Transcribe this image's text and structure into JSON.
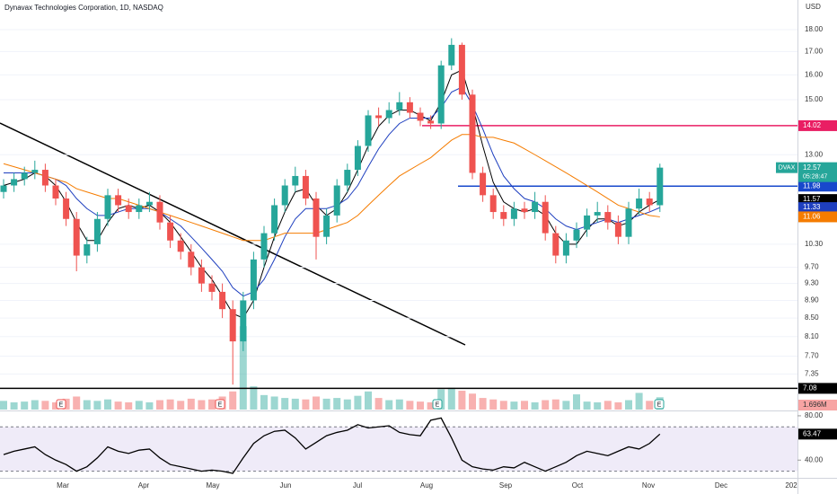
{
  "chart_data": {
    "type": "candlestick",
    "title": "Dynavax Technologies Corporation, 1D, NASDAQ",
    "currency": "USD",
    "symbol": "DVAX",
    "countdown": "05:28:47",
    "up_color": "#26a69a",
    "down_color": "#ef5350",
    "log_scale": true,
    "grid": true,
    "ylim": [
      6.7,
      19.44
    ],
    "yticks": [
      7.35,
      {
        "value": 7.7,
        "label": "7.70"
      },
      {
        "value": 8.1,
        "label": "8.10"
      },
      {
        "value": 8.5,
        "label": "8.50"
      },
      {
        "value": 8.9,
        "label": "8.90"
      },
      {
        "value": 9.3,
        "label": "9.30"
      },
      {
        "value": 9.7,
        "label": "9.70"
      },
      {
        "value": 10.3,
        "label": "10.30"
      },
      {
        "value": 13,
        "label": "13.00"
      },
      {
        "value": 15,
        "label": "15.00"
      },
      {
        "value": 16,
        "label": "16.00"
      },
      {
        "value": 17,
        "label": "17.00"
      },
      {
        "value": 18,
        "label": "18.00"
      }
    ],
    "open": [
      11.8,
      12.0,
      12.2,
      12.4,
      12.5,
      12.0,
      11.6,
      11.0,
      10.0,
      10.3,
      11.0,
      11.7,
      11.4,
      11.2,
      11.4,
      11.5,
      10.9,
      10.4,
      10.1,
      9.7,
      9.3,
      9.1,
      8.7,
      8.0,
      8.9,
      9.9,
      10.6,
      11.4,
      12.0,
      12.3,
      11.6,
      10.5,
      11.1,
      12.0,
      12.5,
      13.3,
      14.4,
      14.3,
      14.6,
      14.9,
      14.5,
      14.2,
      14.1,
      16.4,
      17.3,
      15.2,
      12.4,
      11.7,
      11.2,
      11.0,
      11.3,
      11.2,
      11.5,
      10.6,
      10.0,
      10.4,
      10.7,
      11.1,
      11.2,
      10.9,
      10.5,
      11.3,
      11.6,
      11.4
    ],
    "high": [
      12.2,
      12.4,
      12.6,
      12.8,
      12.7,
      12.2,
      11.8,
      11.2,
      10.5,
      11.2,
      11.9,
      11.9,
      11.6,
      11.6,
      11.8,
      11.7,
      11.1,
      10.6,
      10.3,
      9.9,
      9.5,
      9.3,
      8.9,
      9.1,
      10.1,
      10.8,
      11.6,
      12.2,
      12.6,
      12.5,
      11.8,
      11.3,
      12.2,
      12.7,
      13.5,
      14.6,
      14.7,
      14.9,
      15.3,
      15.1,
      14.7,
      14.4,
      16.6,
      17.6,
      17.4,
      15.4,
      12.6,
      11.9,
      11.4,
      11.5,
      11.5,
      11.8,
      11.7,
      10.8,
      10.6,
      10.9,
      11.3,
      11.5,
      11.4,
      11.1,
      11.5,
      11.9,
      11.8,
      12.7
    ],
    "low": [
      11.6,
      11.8,
      12.0,
      12.2,
      11.8,
      11.4,
      10.8,
      9.6,
      9.8,
      10.1,
      10.8,
      11.2,
      11.0,
      11.0,
      11.2,
      10.7,
      10.2,
      9.9,
      9.5,
      9.1,
      8.9,
      8.5,
      7.15,
      7.8,
      8.7,
      9.7,
      10.4,
      11.2,
      11.8,
      11.4,
      9.9,
      10.3,
      10.9,
      11.8,
      12.3,
      13.1,
      14.0,
      14.1,
      14.4,
      14.3,
      14.0,
      13.9,
      13.9,
      16.2,
      15.0,
      12.2,
      11.5,
      11.0,
      10.8,
      10.8,
      11.0,
      11.0,
      10.4,
      9.8,
      9.8,
      10.2,
      10.5,
      10.9,
      10.7,
      10.3,
      10.3,
      11.1,
      11.2,
      11.2
    ],
    "close": [
      12.0,
      12.2,
      12.4,
      12.5,
      12.0,
      11.6,
      11.0,
      10.0,
      10.3,
      11.0,
      11.7,
      11.4,
      11.2,
      11.4,
      11.5,
      10.9,
      10.4,
      10.1,
      9.7,
      9.3,
      9.1,
      8.7,
      8.0,
      8.9,
      9.9,
      10.6,
      11.4,
      12.0,
      12.3,
      11.6,
      10.5,
      11.1,
      12.0,
      12.5,
      13.3,
      14.4,
      14.3,
      14.6,
      14.9,
      14.5,
      14.2,
      14.1,
      16.4,
      17.3,
      15.2,
      12.4,
      11.7,
      11.2,
      11.0,
      11.3,
      11.2,
      11.5,
      10.6,
      10.0,
      10.4,
      10.7,
      11.1,
      11.2,
      10.9,
      10.5,
      11.3,
      11.6,
      11.4,
      12.57
    ],
    "series": [
      {
        "color": "#000000",
        "values": [
          12.0,
          12.1,
          12.2,
          12.4,
          12.3,
          12.0,
          11.5,
          10.9,
          10.4,
          10.4,
          10.9,
          11.3,
          11.4,
          11.3,
          11.4,
          11.2,
          10.9,
          10.5,
          10.1,
          9.7,
          9.4,
          9.0,
          8.6,
          8.5,
          8.9,
          9.7,
          10.5,
          11.2,
          11.8,
          11.9,
          11.4,
          11.1,
          11.3,
          11.8,
          12.5,
          13.3,
          14.0,
          14.4,
          14.6,
          14.6,
          14.4,
          14.2,
          14.9,
          16.0,
          16.2,
          14.8,
          13.3,
          12.1,
          11.5,
          11.3,
          11.2,
          11.3,
          11.1,
          10.6,
          10.3,
          10.3,
          10.7,
          11.0,
          11.0,
          10.8,
          10.9,
          11.2,
          11.4,
          11.57
        ]
      },
      {
        "color": "#1e3fbf",
        "values": [
          12.4,
          12.4,
          12.4,
          12.4,
          12.3,
          12.2,
          12.0,
          11.6,
          11.3,
          11.1,
          11.1,
          11.2,
          11.3,
          11.3,
          11.3,
          11.2,
          11.0,
          10.8,
          10.5,
          10.2,
          9.9,
          9.6,
          9.2,
          9.0,
          9.1,
          9.4,
          9.9,
          10.5,
          11.0,
          11.3,
          11.3,
          11.3,
          11.4,
          11.6,
          12.0,
          12.6,
          13.2,
          13.7,
          14.1,
          14.3,
          14.3,
          14.3,
          14.7,
          15.3,
          15.5,
          14.8,
          13.9,
          13.0,
          12.3,
          11.9,
          11.6,
          11.5,
          11.3,
          11.0,
          10.8,
          10.7,
          10.8,
          10.9,
          11.0,
          10.9,
          11.0,
          11.1,
          11.2,
          11.33
        ]
      },
      {
        "color": "#f57c00",
        "values": [
          12.7,
          12.6,
          12.5,
          12.4,
          12.3,
          12.2,
          12.1,
          11.9,
          11.8,
          11.7,
          11.6,
          11.6,
          11.5,
          11.4,
          11.3,
          11.2,
          11.1,
          11.0,
          10.9,
          10.8,
          10.7,
          10.6,
          10.5,
          10.4,
          10.4,
          10.4,
          10.5,
          10.6,
          10.6,
          10.6,
          10.6,
          10.7,
          10.8,
          10.9,
          11.1,
          11.4,
          11.7,
          12.0,
          12.3,
          12.5,
          12.7,
          12.9,
          13.2,
          13.5,
          13.7,
          13.7,
          13.6,
          13.6,
          13.5,
          13.4,
          13.2,
          13.0,
          12.8,
          12.6,
          12.4,
          12.2,
          12.0,
          11.8,
          11.6,
          11.4,
          11.3,
          11.2,
          11.1,
          11.06
        ]
      }
    ],
    "price_lines": [
      {
        "value": 14.02,
        "color": "#e91e63"
      },
      {
        "value": 11.98,
        "color": "#1848cc"
      },
      {
        "value": 7.08,
        "color": "#000000"
      }
    ],
    "volume": {
      "ylim": [
        0,
        14
      ],
      "label": "1.696M",
      "values": [
        1.2,
        1.0,
        1.1,
        1.3,
        1.2,
        1.0,
        1.5,
        1.8,
        1.3,
        1.2,
        1.4,
        1.1,
        1.0,
        1.2,
        1.0,
        1.3,
        1.4,
        1.2,
        1.5,
        1.3,
        1.4,
        1.8,
        2.5,
        11.5,
        3.2,
        2.0,
        1.8,
        1.6,
        1.5,
        1.4,
        1.8,
        1.5,
        1.6,
        1.4,
        1.9,
        2.5,
        1.6,
        1.3,
        1.4,
        1.2,
        1.1,
        1.0,
        2.8,
        3.0,
        2.6,
        2.2,
        1.6,
        1.4,
        1.2,
        1.1,
        1.2,
        1.0,
        1.3,
        1.4,
        1.2,
        2.1,
        1.1,
        1.0,
        1.2,
        1.0,
        1.3,
        2.3,
        1.2,
        1.696
      ]
    },
    "rsi": {
      "color": "#000000",
      "ylim": [
        24,
        84
      ],
      "yticks": [
        {
          "value": 80,
          "label": "80.00"
        },
        {
          "value": 40,
          "label": "40.00"
        }
      ],
      "bands": [
        30,
        70
      ],
      "values": [
        45,
        48,
        50,
        52,
        45,
        40,
        36,
        30,
        34,
        42,
        52,
        48,
        46,
        49,
        50,
        42,
        36,
        34,
        32,
        30,
        31,
        30,
        28,
        42,
        55,
        62,
        66,
        67,
        60,
        50,
        56,
        62,
        65,
        67,
        72,
        69,
        70,
        71,
        65,
        63,
        62,
        76,
        78,
        60,
        40,
        34,
        32,
        31,
        34,
        33,
        38,
        34,
        30,
        34,
        38,
        44,
        48,
        46,
        44,
        48,
        52,
        50,
        55,
        63.47
      ]
    },
    "xaxis_labels": [
      "Mar",
      "Apr",
      "May",
      "Jun",
      "Jul",
      "Aug",
      "Sep",
      "Oct",
      "Nov",
      "Dec",
      "202"
    ],
    "earnings": [
      "E",
      "E",
      "E",
      "E"
    ]
  }
}
